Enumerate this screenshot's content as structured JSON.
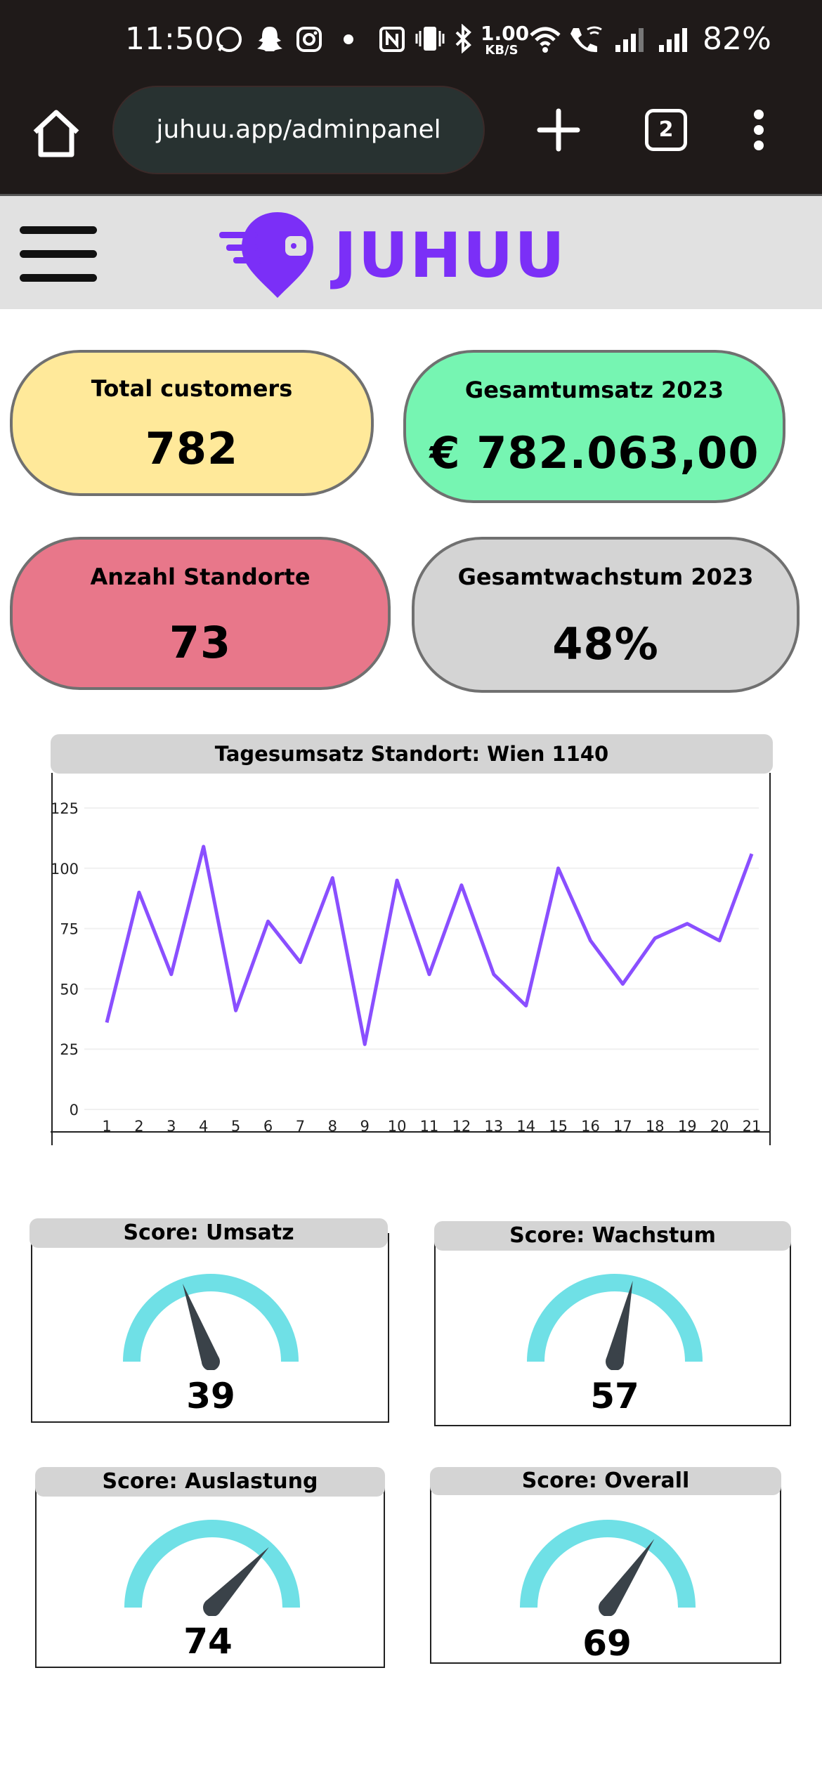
{
  "status_bar": {
    "time": "11:50",
    "net_speed_value": "1.00",
    "net_speed_unit": "KB/S",
    "battery": "82%",
    "icons": [
      "whatsapp-icon",
      "snapchat-icon",
      "instagram-icon",
      "dot-icon",
      "nfc-icon",
      "vibrate-icon",
      "bluetooth-icon",
      "wifi-icon",
      "wifi-call-icon",
      "signal-icon",
      "signal-icon"
    ]
  },
  "browser": {
    "url": "juhuu.app/adminpanel",
    "tab_count": "2"
  },
  "header": {
    "brand": "JUHUU",
    "brand_color": "#7b2ff7"
  },
  "kpis": [
    {
      "label": "Total customers",
      "value": "782",
      "color": "#ffe99a"
    },
    {
      "label": "Gesamtumsatz 2023",
      "value": "€ 782.063,00",
      "color": "#76f5b2"
    },
    {
      "label": "Anzahl Standorte",
      "value": "73",
      "color": "#e8778a"
    },
    {
      "label": "Gesamtwachstum 2023",
      "value": "48%",
      "color": "#d4d4d4"
    }
  ],
  "chart_data": {
    "type": "line",
    "title": "Tagesumsatz Standort: Wien 1140",
    "x": [
      1,
      2,
      3,
      4,
      5,
      6,
      7,
      8,
      9,
      10,
      11,
      12,
      13,
      14,
      15,
      16,
      17,
      18,
      19,
      20,
      21
    ],
    "series": [
      {
        "values": [
          36,
          90,
          56,
          109,
          41,
          78,
          61,
          96,
          27,
          95,
          56,
          93,
          56,
          43,
          100,
          70,
          52,
          71,
          77,
          70,
          106
        ]
      }
    ],
    "ylim": [
      0,
      125
    ],
    "yticks": [
      0,
      25,
      50,
      75,
      100,
      125
    ],
    "line_color": "#8a4fff",
    "grid": true
  },
  "gauges": [
    {
      "title": "Score: Umsatz",
      "value": 39,
      "label": "39"
    },
    {
      "title": "Score: Wachstum",
      "value": 57,
      "label": "57"
    },
    {
      "title": "Score: Auslastung",
      "value": 74,
      "label": "74"
    },
    {
      "title": "Score: Overall",
      "value": 69,
      "label": "69"
    }
  ],
  "gauge_colors": {
    "arc": "#6fe0e6",
    "needle": "#3a4249"
  }
}
